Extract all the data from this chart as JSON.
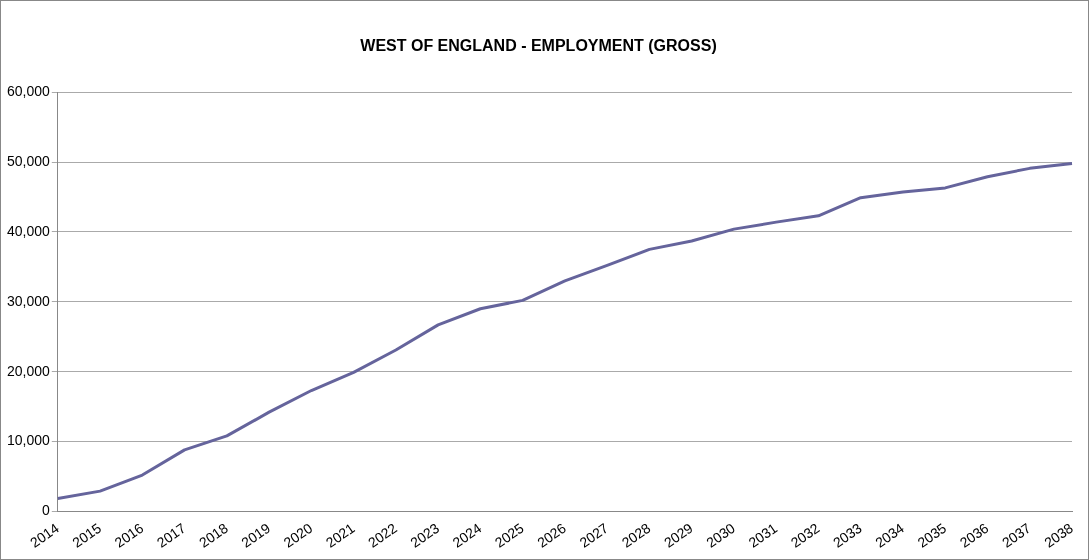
{
  "chart_data": {
    "type": "line",
    "title": "WEST OF ENGLAND - EMPLOYMENT (GROSS)",
    "categories": [
      "2014",
      "2015",
      "2016",
      "2017",
      "2018",
      "2019",
      "2020",
      "2021",
      "2022",
      "2023",
      "2024",
      "2025",
      "2026",
      "2027",
      "2028",
      "2029",
      "2030",
      "2031",
      "2032",
      "2033",
      "2034",
      "2035",
      "2036",
      "2037",
      "2038"
    ],
    "series": [
      {
        "color": "#65649c",
        "values": [
          1850,
          2900,
          5200,
          8800,
          10800,
          14200,
          17300,
          19900,
          23100,
          26700,
          29000,
          30200,
          33000,
          35200,
          37500,
          38700,
          40400,
          41400,
          42300,
          44900,
          45700,
          46300,
          47900,
          49100,
          49800
        ]
      }
    ],
    "ylim": [
      0,
      60000
    ],
    "yticks": [
      {
        "value": 0,
        "label": "0"
      },
      {
        "value": 10000,
        "label": "10,000"
      },
      {
        "value": 20000,
        "label": "20,000"
      },
      {
        "value": 30000,
        "label": "30,000"
      },
      {
        "value": 40000,
        "label": "40,000"
      },
      {
        "value": 50000,
        "label": "50,000"
      },
      {
        "value": 60000,
        "label": "60,000"
      }
    ],
    "grid": "y",
    "legend": false,
    "marker": "none",
    "line_style": "solid"
  }
}
